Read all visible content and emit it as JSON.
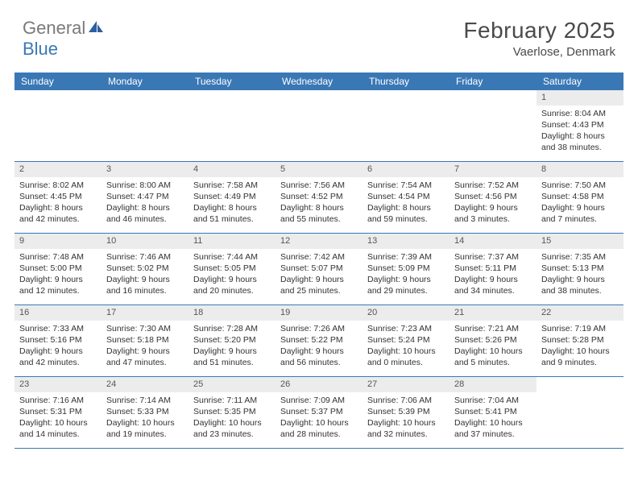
{
  "logo": {
    "part1": "General",
    "part2": "Blue"
  },
  "title": "February 2025",
  "location": "Vaerlose, Denmark",
  "colors": {
    "header_bar": "#3a78b5",
    "day_num_bg": "#ececec",
    "text": "#333333",
    "logo_gray": "#7a7a7a",
    "logo_blue": "#3a78b5"
  },
  "weekdays": [
    "Sunday",
    "Monday",
    "Tuesday",
    "Wednesday",
    "Thursday",
    "Friday",
    "Saturday"
  ],
  "weeks": [
    [
      {
        "num": "",
        "lines": []
      },
      {
        "num": "",
        "lines": []
      },
      {
        "num": "",
        "lines": []
      },
      {
        "num": "",
        "lines": []
      },
      {
        "num": "",
        "lines": []
      },
      {
        "num": "",
        "lines": []
      },
      {
        "num": "1",
        "lines": [
          "Sunrise: 8:04 AM",
          "Sunset: 4:43 PM",
          "Daylight: 8 hours and 38 minutes."
        ]
      }
    ],
    [
      {
        "num": "2",
        "lines": [
          "Sunrise: 8:02 AM",
          "Sunset: 4:45 PM",
          "Daylight: 8 hours and 42 minutes."
        ]
      },
      {
        "num": "3",
        "lines": [
          "Sunrise: 8:00 AM",
          "Sunset: 4:47 PM",
          "Daylight: 8 hours and 46 minutes."
        ]
      },
      {
        "num": "4",
        "lines": [
          "Sunrise: 7:58 AM",
          "Sunset: 4:49 PM",
          "Daylight: 8 hours and 51 minutes."
        ]
      },
      {
        "num": "5",
        "lines": [
          "Sunrise: 7:56 AM",
          "Sunset: 4:52 PM",
          "Daylight: 8 hours and 55 minutes."
        ]
      },
      {
        "num": "6",
        "lines": [
          "Sunrise: 7:54 AM",
          "Sunset: 4:54 PM",
          "Daylight: 8 hours and 59 minutes."
        ]
      },
      {
        "num": "7",
        "lines": [
          "Sunrise: 7:52 AM",
          "Sunset: 4:56 PM",
          "Daylight: 9 hours and 3 minutes."
        ]
      },
      {
        "num": "8",
        "lines": [
          "Sunrise: 7:50 AM",
          "Sunset: 4:58 PM",
          "Daylight: 9 hours and 7 minutes."
        ]
      }
    ],
    [
      {
        "num": "9",
        "lines": [
          "Sunrise: 7:48 AM",
          "Sunset: 5:00 PM",
          "Daylight: 9 hours and 12 minutes."
        ]
      },
      {
        "num": "10",
        "lines": [
          "Sunrise: 7:46 AM",
          "Sunset: 5:02 PM",
          "Daylight: 9 hours and 16 minutes."
        ]
      },
      {
        "num": "11",
        "lines": [
          "Sunrise: 7:44 AM",
          "Sunset: 5:05 PM",
          "Daylight: 9 hours and 20 minutes."
        ]
      },
      {
        "num": "12",
        "lines": [
          "Sunrise: 7:42 AM",
          "Sunset: 5:07 PM",
          "Daylight: 9 hours and 25 minutes."
        ]
      },
      {
        "num": "13",
        "lines": [
          "Sunrise: 7:39 AM",
          "Sunset: 5:09 PM",
          "Daylight: 9 hours and 29 minutes."
        ]
      },
      {
        "num": "14",
        "lines": [
          "Sunrise: 7:37 AM",
          "Sunset: 5:11 PM",
          "Daylight: 9 hours and 34 minutes."
        ]
      },
      {
        "num": "15",
        "lines": [
          "Sunrise: 7:35 AM",
          "Sunset: 5:13 PM",
          "Daylight: 9 hours and 38 minutes."
        ]
      }
    ],
    [
      {
        "num": "16",
        "lines": [
          "Sunrise: 7:33 AM",
          "Sunset: 5:16 PM",
          "Daylight: 9 hours and 42 minutes."
        ]
      },
      {
        "num": "17",
        "lines": [
          "Sunrise: 7:30 AM",
          "Sunset: 5:18 PM",
          "Daylight: 9 hours and 47 minutes."
        ]
      },
      {
        "num": "18",
        "lines": [
          "Sunrise: 7:28 AM",
          "Sunset: 5:20 PM",
          "Daylight: 9 hours and 51 minutes."
        ]
      },
      {
        "num": "19",
        "lines": [
          "Sunrise: 7:26 AM",
          "Sunset: 5:22 PM",
          "Daylight: 9 hours and 56 minutes."
        ]
      },
      {
        "num": "20",
        "lines": [
          "Sunrise: 7:23 AM",
          "Sunset: 5:24 PM",
          "Daylight: 10 hours and 0 minutes."
        ]
      },
      {
        "num": "21",
        "lines": [
          "Sunrise: 7:21 AM",
          "Sunset: 5:26 PM",
          "Daylight: 10 hours and 5 minutes."
        ]
      },
      {
        "num": "22",
        "lines": [
          "Sunrise: 7:19 AM",
          "Sunset: 5:28 PM",
          "Daylight: 10 hours and 9 minutes."
        ]
      }
    ],
    [
      {
        "num": "23",
        "lines": [
          "Sunrise: 7:16 AM",
          "Sunset: 5:31 PM",
          "Daylight: 10 hours and 14 minutes."
        ]
      },
      {
        "num": "24",
        "lines": [
          "Sunrise: 7:14 AM",
          "Sunset: 5:33 PM",
          "Daylight: 10 hours and 19 minutes."
        ]
      },
      {
        "num": "25",
        "lines": [
          "Sunrise: 7:11 AM",
          "Sunset: 5:35 PM",
          "Daylight: 10 hours and 23 minutes."
        ]
      },
      {
        "num": "26",
        "lines": [
          "Sunrise: 7:09 AM",
          "Sunset: 5:37 PM",
          "Daylight: 10 hours and 28 minutes."
        ]
      },
      {
        "num": "27",
        "lines": [
          "Sunrise: 7:06 AM",
          "Sunset: 5:39 PM",
          "Daylight: 10 hours and 32 minutes."
        ]
      },
      {
        "num": "28",
        "lines": [
          "Sunrise: 7:04 AM",
          "Sunset: 5:41 PM",
          "Daylight: 10 hours and 37 minutes."
        ]
      },
      {
        "num": "",
        "lines": []
      }
    ]
  ]
}
